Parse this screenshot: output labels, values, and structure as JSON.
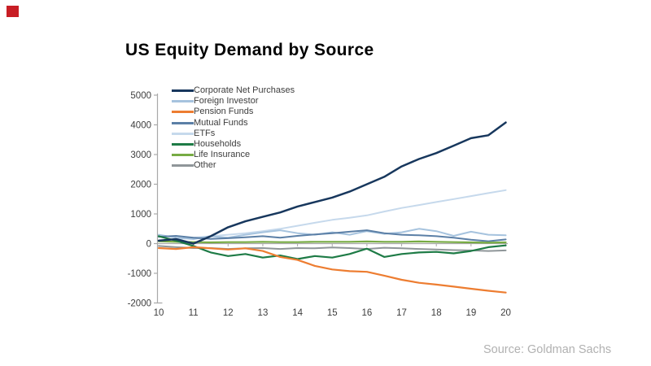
{
  "accent": {
    "color": "#c81e25"
  },
  "header": {
    "title": "US Equity Demand by Source"
  },
  "source_note": "Source: Goldman Sachs",
  "axis_color": "#a9a9a9",
  "label_color": "#3d3d3d",
  "chart_data": {
    "type": "line",
    "title": "US Equity Demand by Source",
    "xlabel": "",
    "ylabel": "",
    "xlim": [
      10,
      20
    ],
    "ylim": [
      -2000,
      5000
    ],
    "grid": false,
    "legend_position": "top-left-inside",
    "x_tick_labels": [
      "10",
      "11",
      "12",
      "13",
      "14",
      "15",
      "16",
      "17",
      "18",
      "19",
      "20"
    ],
    "y_ticks": [
      5000,
      4000,
      3000,
      2000,
      1000,
      0,
      -1000,
      -2000
    ],
    "x": [
      10,
      10.5,
      11,
      11.5,
      12,
      12.5,
      13,
      13.5,
      14,
      14.5,
      15,
      15.5,
      16,
      16.5,
      17,
      17.5,
      18,
      18.5,
      19,
      19.5,
      20
    ],
    "series": [
      {
        "name": "Corporate Net Purchases",
        "color": "#17375d",
        "width": 2.5,
        "values": [
          100,
          150,
          0,
          250,
          550,
          750,
          900,
          1050,
          1250,
          1400,
          1550,
          1750,
          2000,
          2250,
          2600,
          2850,
          3050,
          3300,
          3550,
          3650,
          4080
        ]
      },
      {
        "name": "Foreign Investor",
        "color": "#a6c3de",
        "width": 2,
        "values": [
          300,
          200,
          150,
          250,
          200,
          300,
          380,
          450,
          350,
          300,
          380,
          300,
          420,
          330,
          380,
          500,
          420,
          260,
          400,
          300,
          280
        ]
      },
      {
        "name": "Pension Funds",
        "color": "#ed7d31",
        "width": 2.2,
        "values": [
          -150,
          -180,
          -120,
          -160,
          -200,
          -160,
          -250,
          -450,
          -550,
          -750,
          -870,
          -930,
          -950,
          -1080,
          -1220,
          -1320,
          -1380,
          -1450,
          -1520,
          -1590,
          -1650
        ]
      },
      {
        "name": "Mutual Funds",
        "color": "#5b7fa6",
        "width": 2,
        "values": [
          230,
          260,
          200,
          160,
          180,
          210,
          250,
          200,
          260,
          310,
          350,
          400,
          450,
          350,
          300,
          280,
          250,
          200,
          130,
          80,
          140
        ]
      },
      {
        "name": "ETFs",
        "color": "#c6d9ec",
        "width": 2,
        "values": [
          100,
          150,
          200,
          250,
          300,
          350,
          420,
          500,
          600,
          700,
          800,
          870,
          950,
          1080,
          1200,
          1300,
          1400,
          1500,
          1600,
          1700,
          1800
        ]
      },
      {
        "name": "Households",
        "color": "#1e7b46",
        "width": 2.2,
        "values": [
          250,
          100,
          -80,
          -300,
          -420,
          -350,
          -470,
          -400,
          -520,
          -420,
          -470,
          -350,
          -170,
          -450,
          -350,
          -300,
          -280,
          -330,
          -250,
          -120,
          -60
        ]
      },
      {
        "name": "Life Insurance",
        "color": "#77ab43",
        "width": 2.2,
        "values": [
          80,
          60,
          50,
          40,
          50,
          50,
          60,
          50,
          50,
          60,
          60,
          60,
          70,
          60,
          60,
          70,
          60,
          50,
          40,
          30,
          40
        ]
      },
      {
        "name": "Other",
        "color": "#8f9699",
        "width": 2,
        "values": [
          -80,
          -120,
          -150,
          -150,
          -180,
          -160,
          -150,
          -180,
          -150,
          -160,
          -130,
          -150,
          -180,
          -140,
          -160,
          -180,
          -200,
          -220,
          -230,
          -250,
          -230
        ]
      }
    ]
  }
}
